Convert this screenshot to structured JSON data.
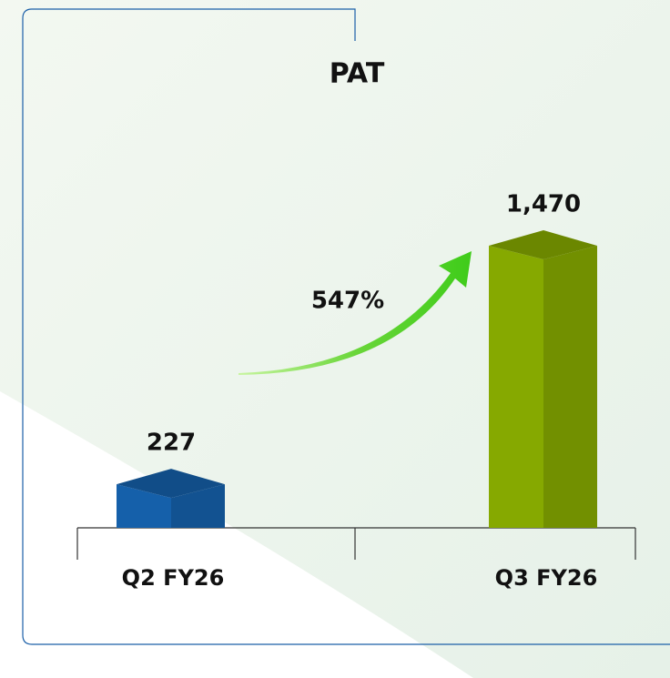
{
  "chart_data": {
    "type": "bar3d",
    "title": "PAT",
    "categories": [
      "Q2 FY26",
      "Q3 FY26"
    ],
    "values": [
      227,
      1470
    ],
    "value_labels": [
      "227",
      "1,470"
    ],
    "colors": [
      "#1560aa",
      "#86a900"
    ],
    "annotation": "547%"
  }
}
